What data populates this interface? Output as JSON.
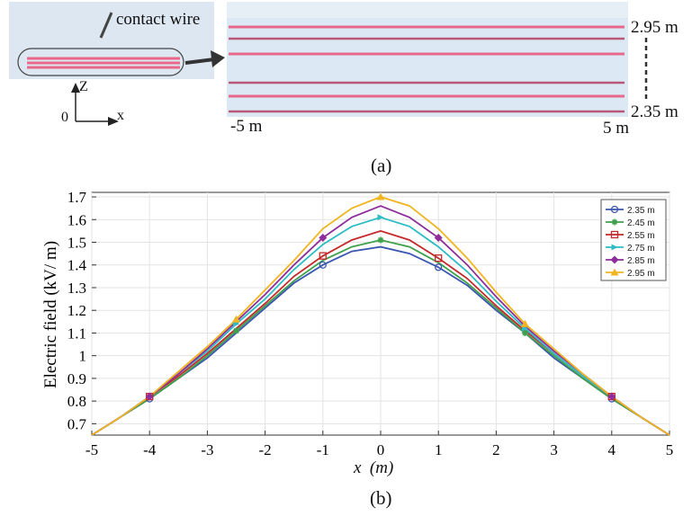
{
  "panel_a": {
    "wire_label": "contact wire",
    "axis_z": "Z",
    "axis_x": "x",
    "origin": "0",
    "height_top": "2.95 m",
    "height_bottom": "2.35 m",
    "x_left": "-5 m",
    "x_right": "5 m",
    "caption": "(a)",
    "colors": {
      "wire": "#e8688a",
      "panel_bg": "#dfe8f3",
      "arrow": "#333333"
    }
  },
  "panel_b": {
    "caption": "(b)"
  },
  "chart_data": {
    "type": "line",
    "xlabel": "x  (m)",
    "ylabel": "Electric field (kV/ m)",
    "xlim": [
      -5,
      5
    ],
    "ylim": [
      0.65,
      1.72
    ],
    "xticks": [
      "-5",
      "-4",
      "-3",
      "-2",
      "-1",
      "0",
      "1",
      "2",
      "3",
      "4",
      "5"
    ],
    "yticks": [
      "0.7",
      "0.8",
      "0.9",
      "1",
      "1.1",
      "1.2",
      "1.3",
      "1.4",
      "1.5",
      "1.6",
      "1.7"
    ],
    "grid": true,
    "legend_position": "top-right",
    "x": [
      -5,
      -4.5,
      -4,
      -3.5,
      -3,
      -2.5,
      -2,
      -1.5,
      -1,
      -0.5,
      0,
      0.5,
      1,
      1.5,
      2,
      2.5,
      3,
      3.5,
      4,
      4.5,
      5
    ],
    "series": [
      {
        "name": "2.35 m",
        "color": "#3a56b0",
        "marker": "circle",
        "values": [
          0.65,
          0.73,
          0.81,
          0.9,
          0.99,
          1.1,
          1.21,
          1.32,
          1.4,
          1.46,
          1.48,
          1.45,
          1.39,
          1.31,
          1.2,
          1.1,
          0.99,
          0.9,
          0.81,
          0.73,
          0.65
        ]
      },
      {
        "name": "2.45 m",
        "color": "#3ea04a",
        "marker": "star",
        "values": [
          0.65,
          0.73,
          0.81,
          0.9,
          1.0,
          1.11,
          1.22,
          1.33,
          1.42,
          1.48,
          1.51,
          1.48,
          1.41,
          1.32,
          1.21,
          1.1,
          1.0,
          0.9,
          0.81,
          0.73,
          0.65
        ]
      },
      {
        "name": "2.55 m",
        "color": "#c52828",
        "marker": "square",
        "values": [
          0.65,
          0.73,
          0.82,
          0.91,
          1.01,
          1.12,
          1.23,
          1.35,
          1.44,
          1.51,
          1.55,
          1.51,
          1.43,
          1.34,
          1.22,
          1.11,
          1.01,
          0.91,
          0.82,
          0.73,
          0.65
        ]
      },
      {
        "name": "2.75 m",
        "color": "#2dbcc4",
        "marker": "triangle",
        "values": [
          0.65,
          0.73,
          0.82,
          0.92,
          1.02,
          1.14,
          1.25,
          1.38,
          1.49,
          1.57,
          1.61,
          1.57,
          1.48,
          1.37,
          1.24,
          1.12,
          1.01,
          0.91,
          0.82,
          0.73,
          0.65
        ]
      },
      {
        "name": "2.85 m",
        "color": "#8d2e9a",
        "marker": "diamond",
        "values": [
          0.65,
          0.73,
          0.82,
          0.92,
          1.03,
          1.15,
          1.27,
          1.4,
          1.52,
          1.61,
          1.66,
          1.61,
          1.52,
          1.4,
          1.26,
          1.13,
          1.02,
          0.92,
          0.82,
          0.73,
          0.65
        ]
      },
      {
        "name": "2.95 m",
        "color": "#f0b520",
        "marker": "triangle-up",
        "values": [
          0.65,
          0.73,
          0.82,
          0.93,
          1.04,
          1.16,
          1.29,
          1.42,
          1.56,
          1.65,
          1.7,
          1.66,
          1.56,
          1.43,
          1.28,
          1.14,
          1.03,
          0.92,
          0.82,
          0.73,
          0.65
        ]
      }
    ]
  }
}
